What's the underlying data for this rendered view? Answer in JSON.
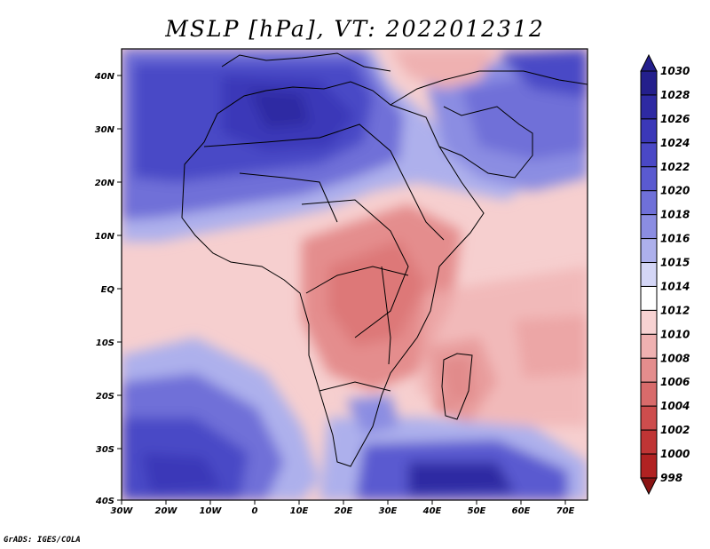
{
  "title": "MSLP [hPa], VT: 2022012312",
  "credit": "GrADS: IGES/COLA",
  "x_ticks": [
    "30W",
    "20W",
    "10W",
    "0",
    "10E",
    "20E",
    "30E",
    "40E",
    "50E",
    "60E",
    "70E"
  ],
  "y_ticks": [
    "40N",
    "30N",
    "20N",
    "10N",
    "EQ",
    "10S",
    "20S",
    "30S",
    "40S"
  ],
  "colorbar": {
    "levels": [
      "1030",
      "1028",
      "1026",
      "1024",
      "1022",
      "1020",
      "1018",
      "1016",
      "1015",
      "1014",
      "1012",
      "1010",
      "1008",
      "1006",
      "1004",
      "1002",
      "1000",
      "998"
    ],
    "colors": [
      "#241f8c",
      "#2e2aa3",
      "#3b38b8",
      "#4a48c6",
      "#5a5ad0",
      "#6f70d8",
      "#8b8de2",
      "#adb0ec",
      "#d4d6f6",
      "#ffffff",
      "#f7d2d2",
      "#efb1b1",
      "#e48d8d",
      "#d86b6b",
      "#cd4d4d",
      "#c03535",
      "#b12222",
      "#8a1414"
    ]
  }
}
